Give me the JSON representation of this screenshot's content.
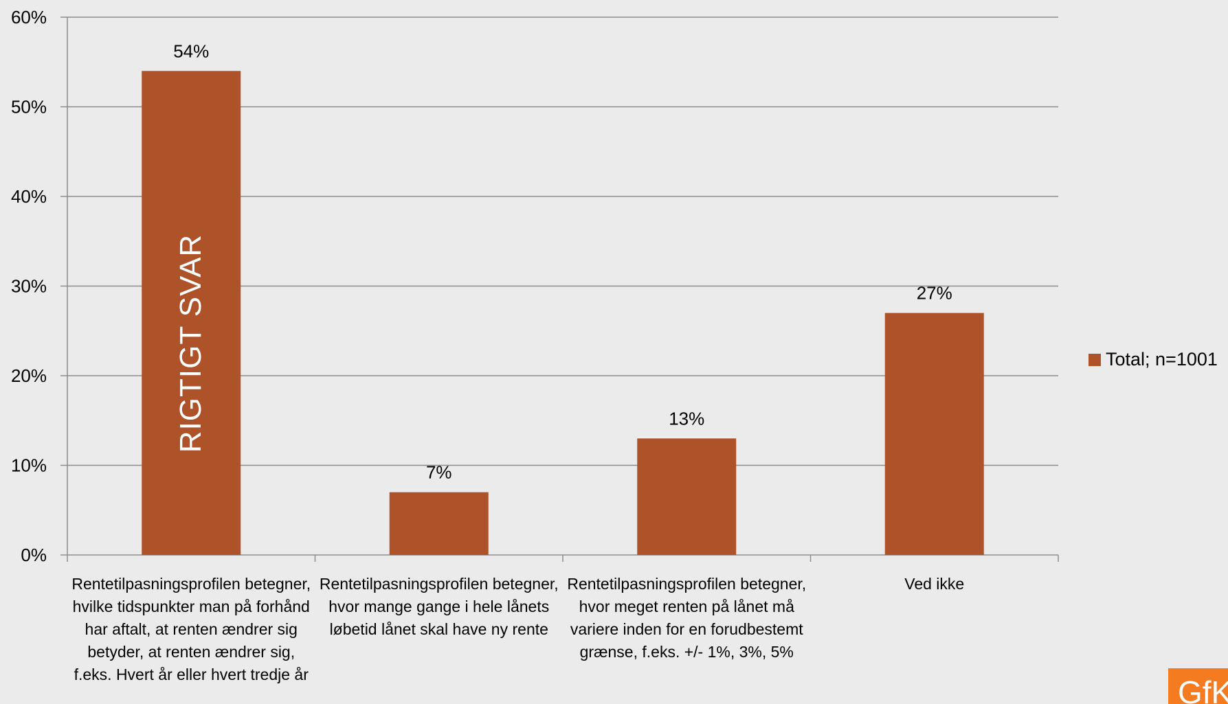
{
  "chart_data": {
    "type": "bar",
    "categories": [
      "Rentetilpasningsprofilen betegner, hvilke tidspunkter man på forhånd har aftalt, at renten ændrer sig betyder, at renten ændrer sig, f.eks. Hvert år eller hvert tredje år",
      "Rentetilpasningsprofilen betegner, hvor mange gange i hele lånets løbetid lånet skal have ny rente",
      "Rentetilpasningsprofilen betegner, hvor meget renten på lånet må variere inden for en forudbestemt grænse, f.eks. +/- 1%, 3%, 5%",
      "Ved ikke"
    ],
    "series": [
      {
        "name": "Total; n=1001",
        "values": [
          54,
          7,
          13,
          27
        ],
        "color": "#ad5229"
      }
    ],
    "value_labels": [
      "54%",
      "7%",
      "13%",
      "27%"
    ],
    "yticks": [
      "0%",
      "10%",
      "20%",
      "30%",
      "40%",
      "50%",
      "60%"
    ],
    "ylim": [
      0,
      60
    ],
    "grid": true,
    "legend_position": "right",
    "annotation": {
      "text": "RIGTIGT SVAR",
      "category_index": 0,
      "color": "#ffffff"
    }
  },
  "legend": {
    "label": "Total; n=1001",
    "color": "#ad5229"
  },
  "logo": {
    "text": "GfK",
    "background": "#f47b20"
  }
}
